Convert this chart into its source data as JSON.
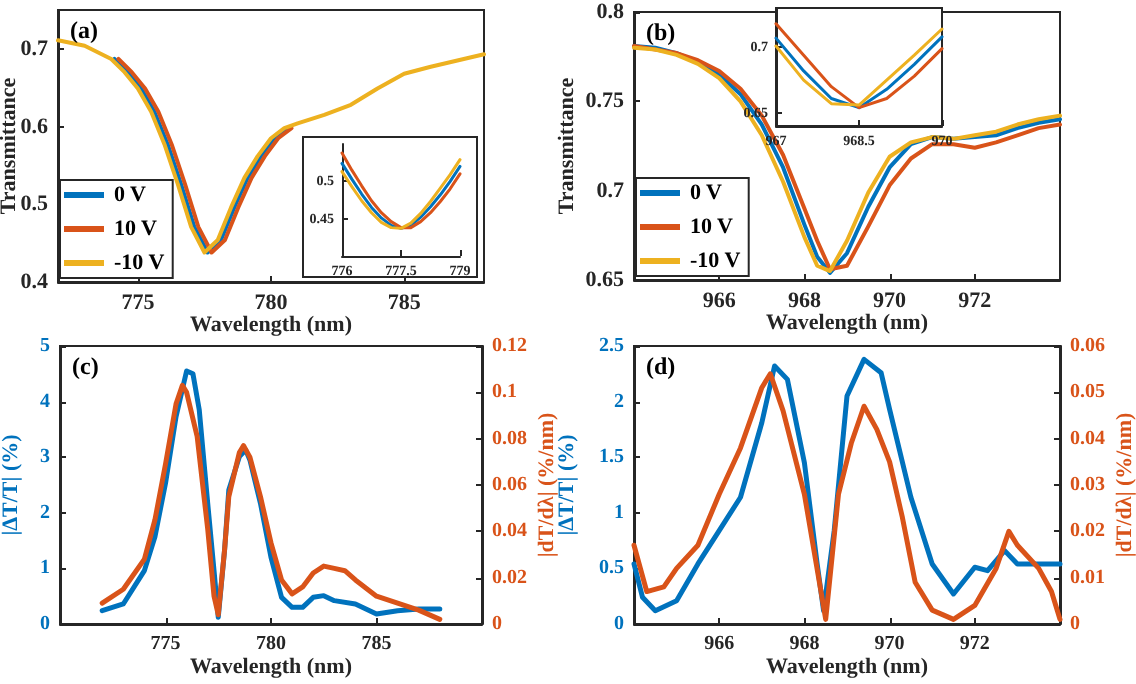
{
  "chart_data": [
    {
      "type": "line",
      "annotations": [
        "(a)"
      ],
      "xlabel": "Wavelength (nm)",
      "ylabel": "Transmittance",
      "legend": "bottom left",
      "series": [
        {
          "name": "0 V",
          "color": "#0072bd",
          "x": [
            774.12,
            774.62,
            775.12,
            775.62,
            776.12,
            776.62,
            777.12,
            777.62,
            778.12,
            778.62,
            779.12,
            779.62,
            780.12,
            780.62
          ],
          "values": [
            0.687,
            0.67,
            0.649,
            0.619,
            0.577,
            0.526,
            0.471,
            0.438,
            0.454,
            0.496,
            0.534,
            0.562,
            0.585,
            0.598
          ]
        },
        {
          "name": "10 V",
          "color": "#d95319",
          "x": [
            774.27,
            774.77,
            775.27,
            775.77,
            776.27,
            776.77,
            777.27,
            777.77,
            778.27,
            778.77,
            779.27,
            779.77,
            780.27,
            780.77
          ],
          "values": [
            0.687,
            0.67,
            0.649,
            0.619,
            0.577,
            0.526,
            0.471,
            0.438,
            0.454,
            0.496,
            0.534,
            0.562,
            0.585,
            0.598
          ]
        },
        {
          "name": "-10 V",
          "color": "#edb120",
          "x": [
            772,
            773,
            774,
            774.5,
            775,
            775.5,
            776,
            776.5,
            777,
            777.5,
            778,
            778.5,
            779,
            779.5,
            780,
            780.5,
            781,
            782,
            783,
            784,
            785,
            786,
            787,
            788
          ],
          "values": [
            0.711,
            0.704,
            0.687,
            0.67,
            0.649,
            0.619,
            0.577,
            0.526,
            0.471,
            0.438,
            0.454,
            0.496,
            0.534,
            0.562,
            0.585,
            0.598,
            0.604,
            0.615,
            0.628,
            0.649,
            0.668,
            0.677,
            0.685,
            0.693
          ]
        }
      ],
      "xlim": [
        772,
        788
      ],
      "xticks": [
        775,
        780,
        785
      ],
      "ylim": [
        0.4,
        0.75
      ],
      "yticks": [
        0.4,
        0.5,
        0.6,
        0.7
      ]
    },
    {
      "type": "line",
      "x": [
        776,
        776.25,
        776.5,
        776.75,
        777,
        777.25,
        777.5,
        777.75,
        778,
        778.25,
        778.5,
        778.75,
        779
      ],
      "series": [
        {
          "color": "#0072bd",
          "values": [
            0.524,
            0.503,
            0.483,
            0.465,
            0.451,
            0.441,
            0.437,
            0.441,
            0.452,
            0.466,
            0.482,
            0.5,
            0.52
          ]
        },
        {
          "color": "#d95319",
          "values": [
            0.538,
            0.515,
            0.494,
            0.474,
            0.458,
            0.446,
            0.438,
            0.438,
            0.446,
            0.458,
            0.473,
            0.49,
            0.51
          ]
        },
        {
          "color": "#edb120",
          "values": [
            0.513,
            0.493,
            0.474,
            0.458,
            0.445,
            0.438,
            0.437,
            0.444,
            0.457,
            0.473,
            0.491,
            0.509,
            0.529
          ]
        }
      ],
      "xlim": [
        776,
        779
      ],
      "xticks": [
        776,
        777.5,
        779
      ],
      "ylim": [
        0.4,
        0.55
      ],
      "yticks": [
        0.45,
        0.5
      ]
    },
    {
      "type": "line",
      "annotations": [
        "(b)"
      ],
      "xlabel": "Wavelength (nm)",
      "ylabel": "Transmittance",
      "legend": "bottom left",
      "x": [
        964,
        964.5,
        965,
        965.5,
        966,
        966.5,
        967,
        967.5,
        968,
        968.3,
        968.6,
        969,
        969.5,
        970,
        970.5,
        971,
        971.5,
        972,
        972.5,
        973,
        973.5,
        974
      ],
      "series": [
        {
          "name": "0 V",
          "color": "#0072bd",
          "values": [
            0.781,
            0.78,
            0.777,
            0.772,
            0.765,
            0.754,
            0.737,
            0.713,
            0.681,
            0.663,
            0.654,
            0.665,
            0.691,
            0.713,
            0.726,
            0.73,
            0.729,
            0.73,
            0.731,
            0.735,
            0.738,
            0.74
          ]
        },
        {
          "name": "10 V",
          "color": "#d95319",
          "values": [
            0.781,
            0.779,
            0.777,
            0.773,
            0.767,
            0.757,
            0.742,
            0.72,
            0.69,
            0.672,
            0.656,
            0.658,
            0.68,
            0.703,
            0.718,
            0.726,
            0.726,
            0.724,
            0.727,
            0.731,
            0.735,
            0.737
          ]
        },
        {
          "name": "-10 V",
          "color": "#edb120",
          "values": [
            0.78,
            0.779,
            0.776,
            0.771,
            0.763,
            0.75,
            0.731,
            0.705,
            0.674,
            0.658,
            0.655,
            0.672,
            0.699,
            0.719,
            0.727,
            0.73,
            0.729,
            0.731,
            0.733,
            0.737,
            0.74,
            0.742
          ]
        }
      ],
      "xlim": [
        964,
        974
      ],
      "xticks": [
        966,
        968,
        970,
        972
      ],
      "ylim": [
        0.65,
        0.8
      ],
      "yticks": [
        0.65,
        0.7,
        0.75,
        0.8
      ]
    },
    {
      "type": "line",
      "x": [
        967,
        967.5,
        968,
        968.5,
        969,
        969.5,
        970
      ],
      "series": [
        {
          "color": "#0072bd",
          "values": [
            0.707,
            0.682,
            0.661,
            0.654,
            0.668,
            0.687,
            0.708
          ]
        },
        {
          "color": "#d95319",
          "values": [
            0.718,
            0.694,
            0.67,
            0.654,
            0.661,
            0.678,
            0.699
          ]
        },
        {
          "color": "#edb120",
          "values": [
            0.701,
            0.675,
            0.657,
            0.656,
            0.675,
            0.694,
            0.714
          ]
        }
      ],
      "xlim": [
        967,
        970
      ],
      "xticks": [
        967,
        968.5,
        970
      ],
      "ylim": [
        0.64,
        0.73
      ],
      "yticks": [
        0.65,
        0.7
      ]
    },
    {
      "type": "line",
      "annotations": [
        "(c)"
      ],
      "xlabel": "Wavelength (nm)",
      "ylabel": "|ΔT/T| (%)",
      "y2label": "|dT/dλ| (%/nm)",
      "series": [
        {
          "color": "#0072bd",
          "x": [
            772,
            773,
            774,
            774.5,
            775,
            775.5,
            776,
            776.3,
            776.6,
            777,
            777.3,
            777.5,
            777.8,
            778,
            778.5,
            778.8,
            779,
            779.5,
            780,
            780.5,
            781,
            781.5,
            782,
            782.5,
            783,
            784,
            785,
            786,
            787,
            788
          ],
          "values": [
            0.24,
            0.36,
            0.96,
            1.57,
            2.53,
            3.73,
            4.55,
            4.5,
            3.85,
            2.17,
            0.96,
            0.12,
            1.33,
            2.41,
            3.01,
            3.13,
            2.95,
            2.17,
            1.2,
            0.48,
            0.3,
            0.3,
            0.48,
            0.51,
            0.42,
            0.36,
            0.18,
            0.24,
            0.27,
            0.27
          ]
        },
        {
          "color": "#d95319",
          "axis": "y2",
          "x": [
            772,
            773,
            774,
            774.5,
            775,
            775.5,
            775.8,
            776,
            776.5,
            777,
            777.3,
            777.5,
            777.8,
            778,
            778.5,
            778.7,
            779,
            779.5,
            780,
            780.5,
            781,
            781.5,
            782,
            782.5,
            783,
            783.5,
            784,
            785,
            786,
            787,
            788
          ],
          "values": [
            0.009,
            0.015,
            0.028,
            0.045,
            0.069,
            0.095,
            0.103,
            0.1,
            0.081,
            0.041,
            0.012,
            0.004,
            0.032,
            0.055,
            0.074,
            0.077,
            0.072,
            0.055,
            0.035,
            0.019,
            0.013,
            0.016,
            0.022,
            0.025,
            0.024,
            0.023,
            0.019,
            0.012,
            0.009,
            0.006,
            0.002
          ]
        }
      ],
      "xlim": [
        770,
        790
      ],
      "xticks": [
        775,
        780,
        785
      ],
      "ylim": [
        0,
        5
      ],
      "yticks": [
        0,
        1,
        2,
        3,
        4,
        5
      ],
      "y2lim": [
        0,
        0.12
      ],
      "y2ticks": [
        0,
        0.02,
        0.04,
        0.06,
        0.08,
        0.1,
        0.12
      ]
    },
    {
      "type": "line",
      "annotations": [
        "(d)"
      ],
      "xlabel": "Wavelength (nm)",
      "ylabel": "|ΔT/T| (%)",
      "y2label": "|dT/dλ| (%/nm)",
      "series": [
        {
          "color": "#0072bd",
          "x": [
            964,
            964.2,
            964.5,
            965,
            965.5,
            966,
            966.5,
            967,
            967.3,
            967.6,
            968,
            968.3,
            968.45,
            968.7,
            969,
            969.4,
            969.8,
            970,
            970.5,
            971,
            971.5,
            972,
            972.3,
            972.7,
            973,
            973.5,
            974
          ],
          "values": [
            0.54,
            0.24,
            0.12,
            0.21,
            0.54,
            0.84,
            1.14,
            1.81,
            2.32,
            2.2,
            1.45,
            0.54,
            0.12,
            0.84,
            2.05,
            2.38,
            2.26,
            1.93,
            1.14,
            0.54,
            0.27,
            0.51,
            0.48,
            0.66,
            0.54,
            0.54,
            0.54
          ]
        },
        {
          "color": "#d95319",
          "axis": "y2",
          "x": [
            964,
            964.3,
            964.7,
            965,
            965.5,
            966,
            966.5,
            967,
            967.2,
            967.5,
            968,
            968.5,
            968.8,
            969.1,
            969.4,
            969.7,
            970,
            970.3,
            970.6,
            971,
            971.5,
            972,
            972.5,
            972.8,
            973,
            973.5,
            973.8,
            974
          ],
          "values": [
            0.017,
            0.007,
            0.008,
            0.012,
            0.017,
            0.028,
            0.038,
            0.051,
            0.054,
            0.046,
            0.028,
            0.001,
            0.028,
            0.039,
            0.047,
            0.042,
            0.035,
            0.023,
            0.009,
            0.003,
            0.001,
            0.004,
            0.012,
            0.02,
            0.017,
            0.012,
            0.007,
            0.001
          ]
        }
      ],
      "xlim": [
        964,
        974
      ],
      "xticks": [
        966,
        968,
        970,
        972
      ],
      "ylim": [
        0,
        2.5
      ],
      "yticks": [
        0,
        0.5,
        1,
        1.5,
        2,
        2.5
      ],
      "y2lim": [
        0,
        0.06
      ],
      "y2ticks": [
        0,
        0.01,
        0.02,
        0.03,
        0.04,
        0.05,
        0.06
      ]
    }
  ]
}
